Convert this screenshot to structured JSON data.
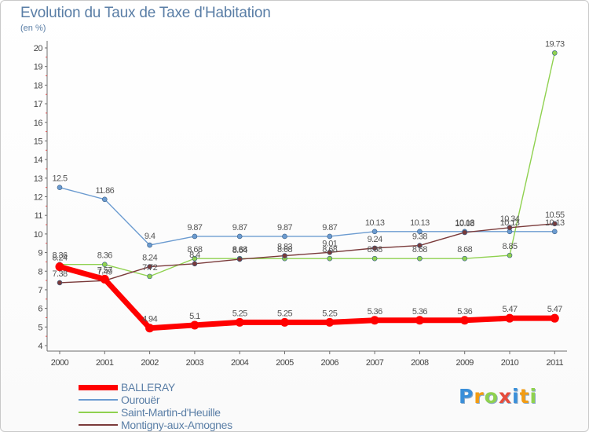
{
  "chart_data": {
    "type": "line",
    "title": "Evolution du Taux de Taxe d'Habitation",
    "unit_label": "(en %)",
    "x": [
      "2000",
      "2001",
      "2002",
      "2003",
      "2004",
      "2005",
      "2006",
      "2007",
      "2008",
      "2009",
      "2010",
      "2011"
    ],
    "ylim": [
      4,
      20
    ],
    "yticks": [
      "4",
      "5",
      "6",
      "7",
      "8",
      "9",
      "10",
      "11",
      "12",
      "13",
      "14",
      "15",
      "16",
      "17",
      "18",
      "19",
      "20"
    ],
    "grid": false,
    "legend_position": "bottom-left",
    "series": [
      {
        "name": "Ourouër",
        "color": "#6b9bd0",
        "values": [
          12.5,
          11.86,
          9.4,
          9.87,
          9.87,
          9.87,
          9.87,
          10.13,
          10.13,
          10.13,
          10.13,
          10.13
        ],
        "labels": [
          "12.5",
          "11.86",
          "9.4",
          "9.87",
          "9.87",
          "9.87",
          "9.87",
          "10.13",
          "10.13",
          "10.13",
          "10.13",
          "10.13"
        ]
      },
      {
        "name": "Saint-Martin-d'Heuille",
        "color": "#8fd14f",
        "values": [
          8.36,
          8.36,
          7.72,
          8.68,
          8.68,
          8.68,
          8.68,
          8.68,
          8.68,
          8.68,
          8.85,
          19.73
        ],
        "labels": [
          "8.36",
          "8.36",
          "7.72",
          "8.68",
          "8.68",
          "8.68",
          "8.68",
          "8.68",
          "8.68",
          "8.68",
          "8.85",
          "19.73"
        ]
      },
      {
        "name": "Montigny-aux-Amognes",
        "color": "#7a3a3a",
        "values": [
          7.38,
          7.49,
          8.24,
          8.4,
          8.64,
          8.83,
          9.01,
          9.24,
          9.38,
          10.08,
          10.34,
          10.55
        ],
        "labels": [
          "7.38",
          "7.49",
          "8.24",
          "8.4",
          "8.64",
          "8.83",
          "9.01",
          "9.24",
          "9.38",
          "10.08",
          "10.34",
          "10.55"
        ]
      },
      {
        "name": "BALLERAY",
        "color": "#ff0000",
        "values": [
          8.24,
          7.57,
          4.94,
          5.1,
          5.25,
          5.25,
          5.25,
          5.36,
          5.36,
          5.36,
          5.47,
          5.47
        ],
        "labels": [
          "8.24",
          "7.57",
          "4.94",
          "5.1",
          "5.25",
          "5.25",
          "5.25",
          "5.36",
          "5.36",
          "5.36",
          "5.47",
          "5.47"
        ]
      }
    ],
    "legend": [
      {
        "name": "BALLERAY",
        "color": "#ff0000",
        "thick": true
      },
      {
        "name": "Ourouër",
        "color": "#6b9bd0",
        "thick": false
      },
      {
        "name": "Saint-Martin-d'Heuille",
        "color": "#8fd14f",
        "thick": false
      },
      {
        "name": "Montigny-aux-Amognes",
        "color": "#7a3a3a",
        "thick": false
      }
    ]
  },
  "logo": {
    "text": "Proxiti",
    "letters": [
      {
        "ch": "P",
        "color": "#3a8fd9"
      },
      {
        "ch": "r",
        "color": "#f39c12"
      },
      {
        "ch": "o",
        "color": "#8fd14f"
      },
      {
        "ch": "x",
        "color": "#e74c3c"
      },
      {
        "ch": "i",
        "color": "#3a8fd9"
      },
      {
        "ch": "t",
        "color": "#f39c12"
      },
      {
        "ch": "i",
        "color": "#8fd14f"
      }
    ]
  }
}
